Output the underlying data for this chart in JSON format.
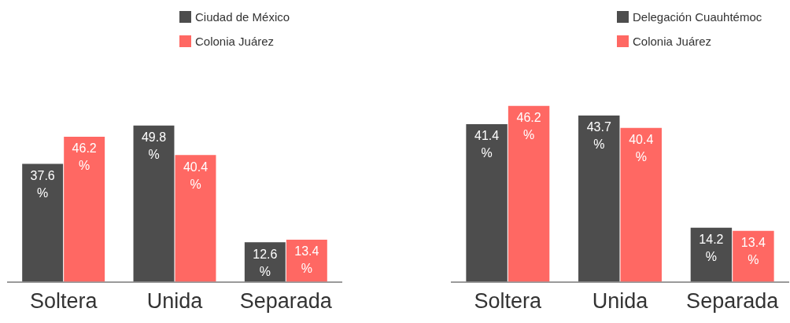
{
  "chart_data": [
    {
      "type": "bar",
      "categories": [
        "Soltera",
        "Unida",
        "Separada"
      ],
      "legend": "top",
      "grid": false,
      "series": [
        {
          "name": "Ciudad de México",
          "color": "#4d4d4d",
          "values": [
            37.6,
            49.8,
            12.6
          ],
          "value_labels": [
            "37.6 %",
            "49.8 %",
            "12.6 %"
          ]
        },
        {
          "name": "Colonia Juárez",
          "color": "#ff6863",
          "values": [
            46.2,
            40.4,
            13.4
          ],
          "value_labels": [
            "46.2 %",
            "40.4 %",
            "13.4 %"
          ]
        }
      ]
    },
    {
      "type": "bar",
      "categories": [
        "Soltera",
        "Unida",
        "Separada"
      ],
      "legend": "top",
      "grid": false,
      "series": [
        {
          "name": "Delegación Cuauhtémoc",
          "color": "#4d4d4d",
          "values": [
            41.4,
            43.7,
            14.2
          ],
          "value_labels": [
            "41.4 %",
            "43.7 %",
            "14.2 %"
          ]
        },
        {
          "name": "Colonia Juárez",
          "color": "#ff6863",
          "values": [
            46.2,
            40.4,
            13.4
          ],
          "value_labels": [
            "46.2 %",
            "40.4 %",
            "13.4 %"
          ]
        }
      ]
    }
  ]
}
